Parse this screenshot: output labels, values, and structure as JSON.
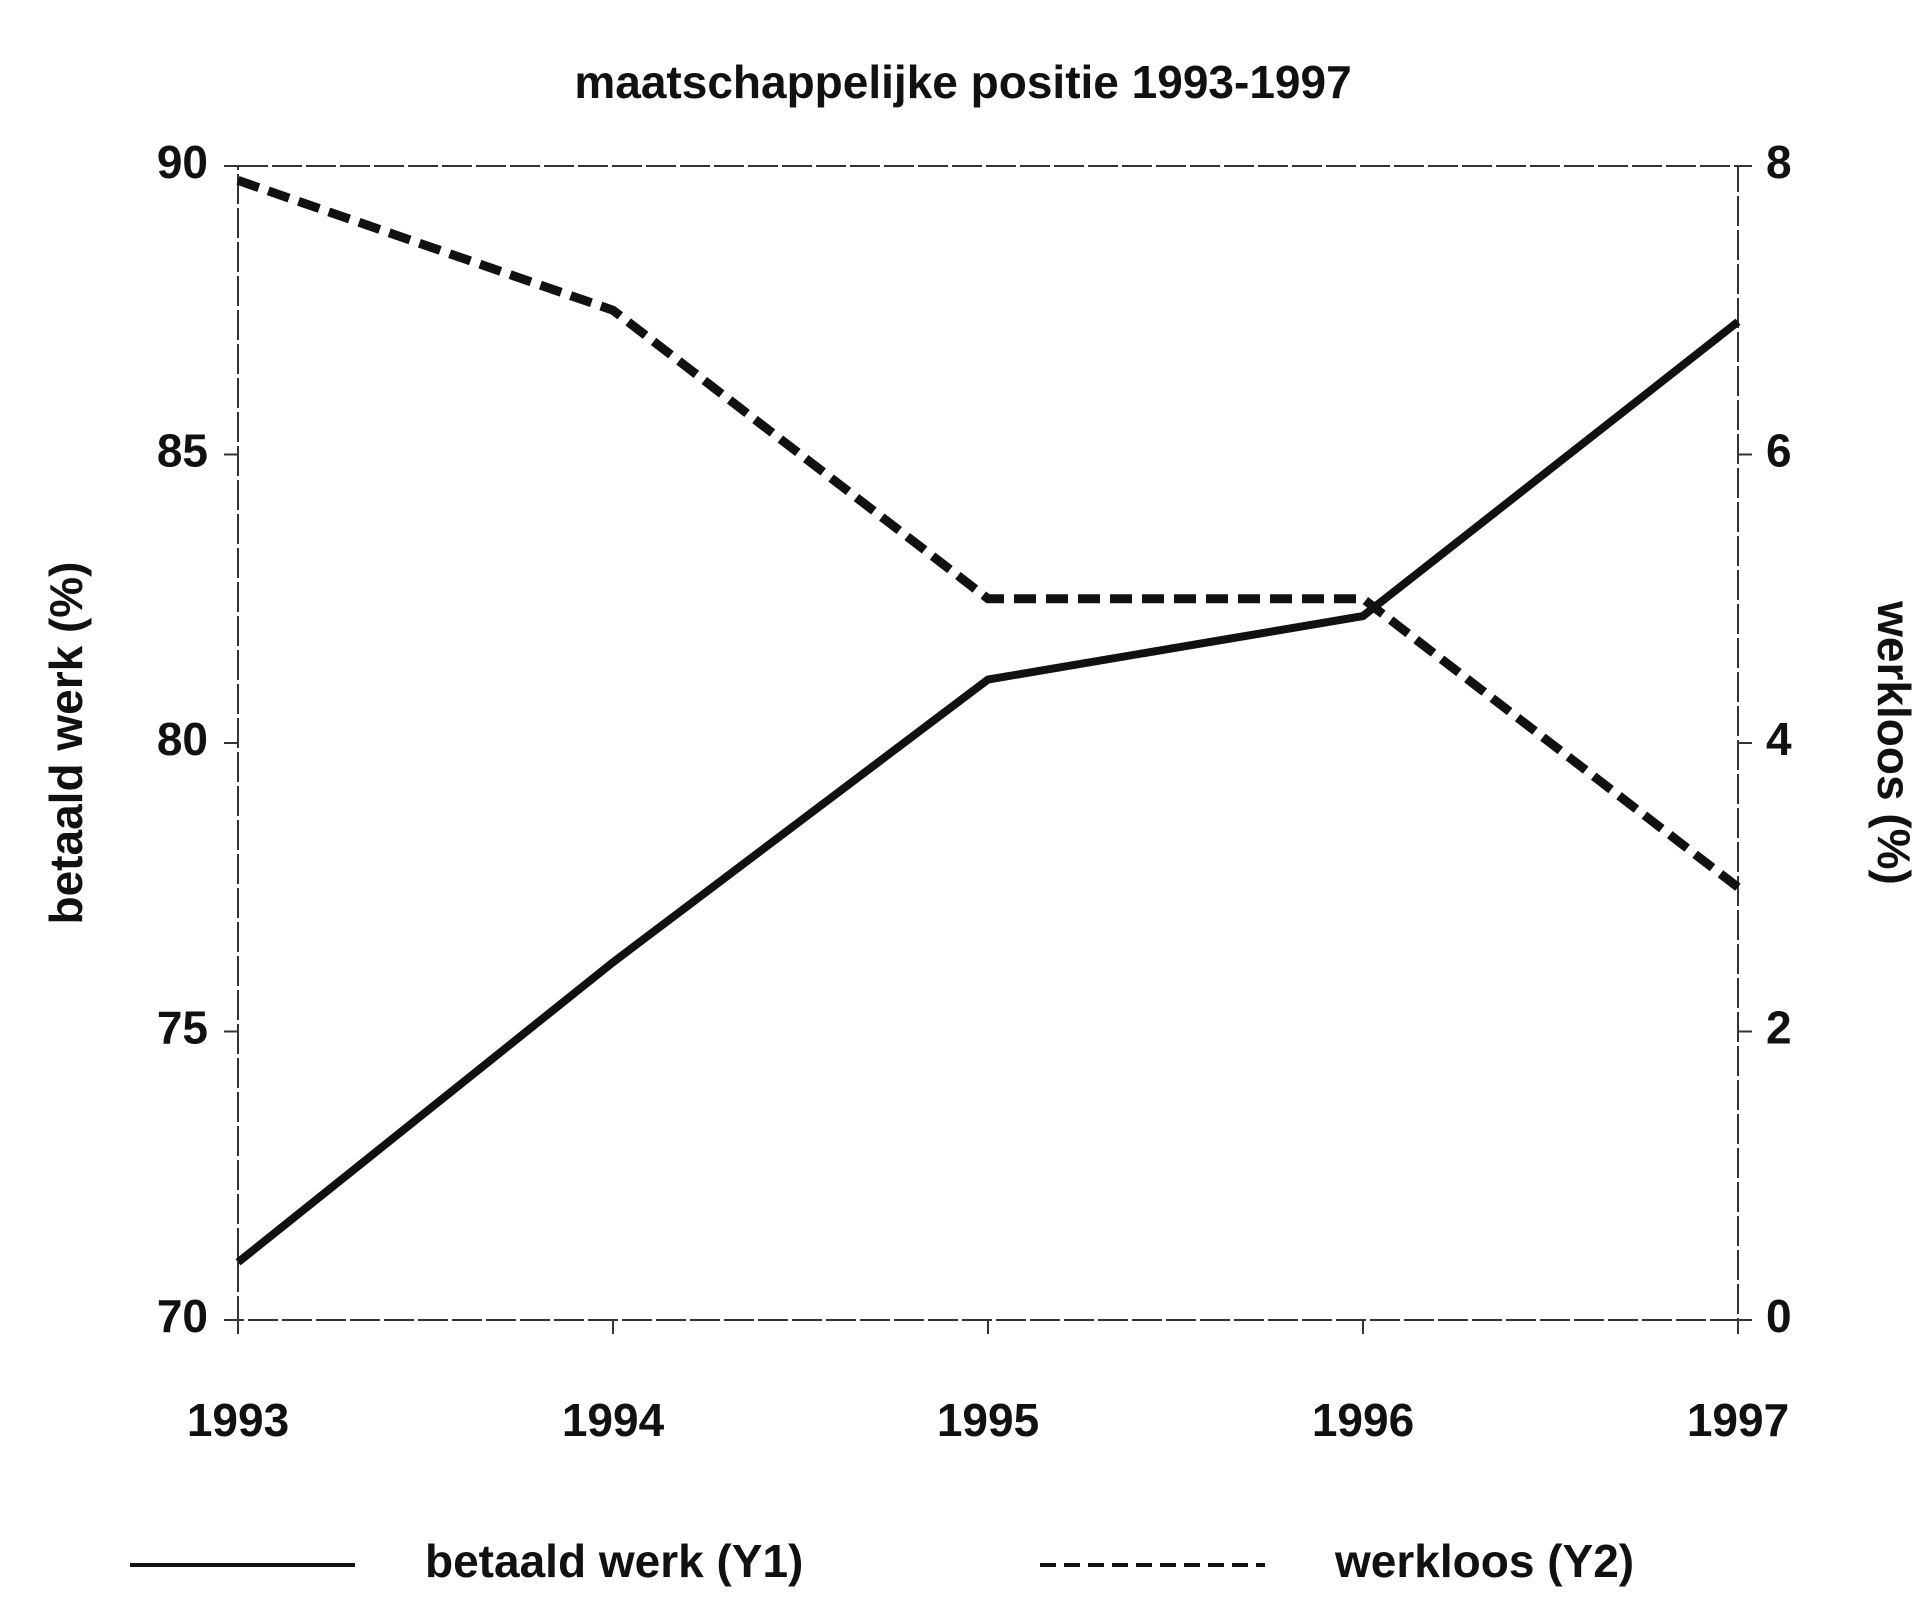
{
  "chart_data": {
    "type": "line",
    "title": "maatschappelijke positie 1993-1997",
    "categories": [
      "1993",
      "1994",
      "1995",
      "1996",
      "1997"
    ],
    "y_label": "betaald werk (%)",
    "y2_label": "werkloos (%)",
    "ylim": [
      70,
      90
    ],
    "yticks": [
      70,
      75,
      80,
      85,
      90
    ],
    "y2lim": [
      0,
      8
    ],
    "y2ticks": [
      0,
      2,
      4,
      6,
      8
    ],
    "series": [
      {
        "name": "betaald werk (Y1)",
        "color": "#111111",
        "dash": "solid",
        "values": [
          71.0,
          76.2,
          81.1,
          82.2,
          87.3
        ]
      },
      {
        "name": "werkloos (Y2)",
        "color": "#111111",
        "dash": "dashed",
        "axis": "y2",
        "values": [
          7.9,
          7.0,
          5.0,
          5.0,
          3.0
        ]
      }
    ]
  }
}
